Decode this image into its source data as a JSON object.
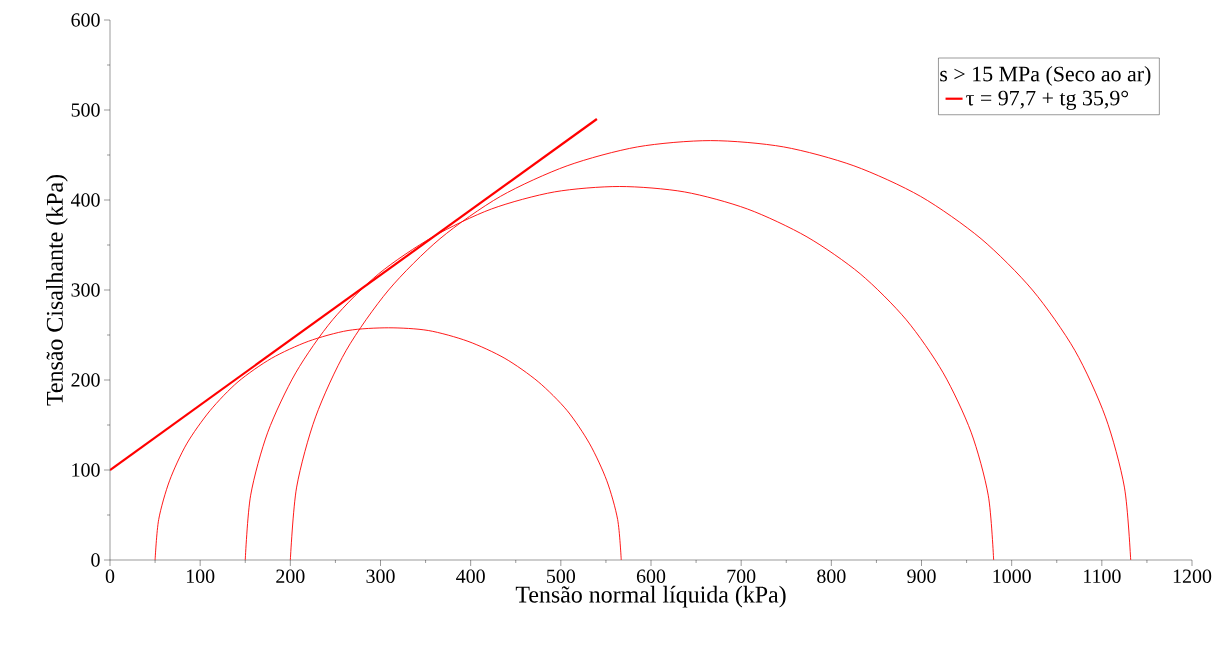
{
  "chart_data": {
    "type": "line",
    "xlabel": "Tensão normal líquida (kPa)",
    "ylabel": "Tensão Cisalhante (kPa)",
    "legend_title": "s > 15 MPa (Seco ao ar)",
    "legend": "top right",
    "xlim": [
      0,
      1200
    ],
    "ylim": [
      0,
      600
    ],
    "xticks": [
      0,
      100,
      200,
      300,
      400,
      500,
      600,
      700,
      800,
      900,
      1000,
      1100,
      1200
    ],
    "yticks": [
      0,
      100,
      200,
      300,
      400,
      500,
      600
    ],
    "series": [
      {
        "name": "τ = 97,7 + tg 35,9°",
        "color": "#ff0000",
        "x": [
          0,
          540
        ],
        "values": [
          100,
          490
        ]
      },
      {
        "color": "#ff0000",
        "x": [
          567,
          563,
          551,
          532,
          507,
          475,
          438,
          397,
          353,
          309,
          264,
          220,
          179,
          142,
          111,
          85,
          66,
          54,
          50
        ],
        "values": [
          0,
          45,
          88,
          129,
          166,
          198,
          224,
          243,
          255,
          258,
          255,
          243,
          224,
          198,
          166,
          129,
          88,
          45,
          0
        ]
      },
      {
        "color": "#ff0000",
        "x": [
          980,
          974,
          955,
          924,
          883,
          832,
          773,
          707,
          637,
          565,
          493,
          423,
          358,
          298,
          247,
          206,
          175,
          156,
          150
        ],
        "values": [
          0,
          72,
          142,
          208,
          267,
          318,
          359,
          390,
          409,
          415,
          409,
          390,
          359,
          318,
          267,
          208,
          142,
          72,
          0
        ]
      },
      {
        "color": "#ff0000",
        "x": [
          1132,
          1125,
          1104,
          1070,
          1023,
          966,
          899,
          825,
          747,
          666,
          585,
          507,
          433,
          366,
          309,
          262,
          228,
          207,
          200
        ],
        "values": [
          0,
          81,
          159,
          233,
          300,
          357,
          404,
          438,
          459,
          466,
          459,
          438,
          404,
          357,
          300,
          233,
          159,
          81,
          0
        ]
      }
    ]
  }
}
